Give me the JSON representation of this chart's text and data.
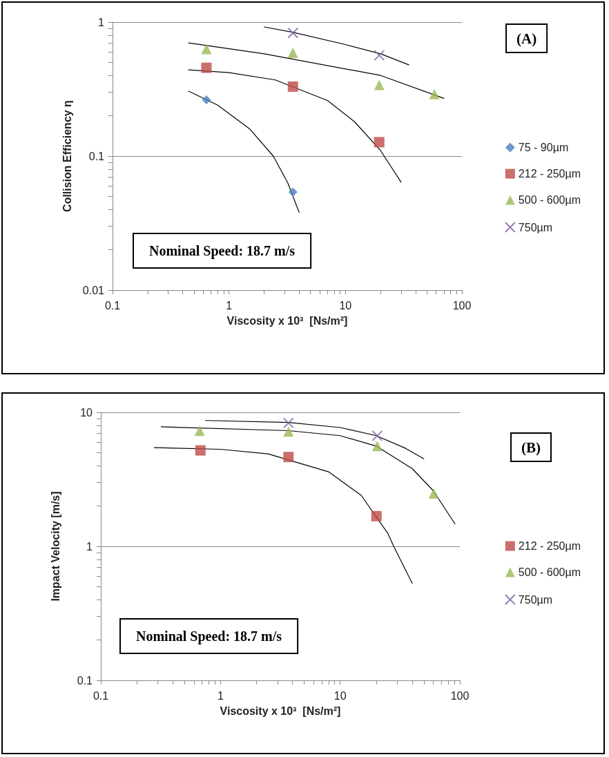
{
  "chart_data": [
    {
      "type": "scatter",
      "ylabel": "Collision Efficiency η",
      "xlabel": "Viscosity x 10³  [Ns/m²]",
      "log": "xy",
      "grid": "y",
      "legend": "right",
      "annotations": [
        "Nominal Speed: 18.7 m/s",
        "(A)"
      ],
      "xlim": [
        0.1,
        100
      ],
      "ylim": [
        0.01,
        1
      ],
      "xticks": [
        0.1,
        {
          "value": 0.2,
          "label": null
        },
        {
          "value": 0.3,
          "label": null
        },
        {
          "value": 0.4,
          "label": null
        },
        {
          "value": 0.5,
          "label": null
        },
        {
          "value": 0.6,
          "label": null
        },
        {
          "value": 0.7,
          "label": null
        },
        {
          "value": 0.8,
          "label": null
        },
        {
          "value": 0.9,
          "label": null
        },
        1,
        {
          "value": 2,
          "label": null
        },
        {
          "value": 3,
          "label": null
        },
        {
          "value": 4,
          "label": null
        },
        {
          "value": 5,
          "label": null
        },
        {
          "value": 6,
          "label": null
        },
        {
          "value": 7,
          "label": null
        },
        {
          "value": 8,
          "label": null
        },
        {
          "value": 9,
          "label": null
        },
        10,
        {
          "value": 20,
          "label": null
        },
        {
          "value": 30,
          "label": null
        },
        {
          "value": 40,
          "label": null
        },
        {
          "value": 50,
          "label": null
        },
        {
          "value": 60,
          "label": null
        },
        {
          "value": 70,
          "label": null
        },
        {
          "value": 80,
          "label": null
        },
        {
          "value": 90,
          "label": null
        },
        100
      ],
      "yticks": [
        0.01,
        {
          "value": 0.02,
          "label": null
        },
        {
          "value": 0.03,
          "label": null
        },
        {
          "value": 0.04,
          "label": null
        },
        {
          "value": 0.05,
          "label": null
        },
        {
          "value": 0.06,
          "label": null
        },
        {
          "value": 0.07,
          "label": null
        },
        {
          "value": 0.08,
          "label": null
        },
        {
          "value": 0.09,
          "label": null
        },
        0.1,
        {
          "value": 0.2,
          "label": null
        },
        {
          "value": 0.3,
          "label": null
        },
        {
          "value": 0.4,
          "label": null
        },
        {
          "value": 0.5,
          "label": null
        },
        {
          "value": 0.6,
          "label": null
        },
        {
          "value": 0.7,
          "label": null
        },
        {
          "value": 0.8,
          "label": null
        },
        {
          "value": 0.9,
          "label": null
        },
        1
      ],
      "series": [
        {
          "type": "scatter",
          "name": "75 - 90µm",
          "color": "#4a7ebb",
          "marker": "diamond",
          "x": [
            0.64,
            3.54
          ],
          "values": [
            0.263,
            0.054
          ]
        },
        {
          "type": "scatter",
          "name": "212 - 250µm",
          "color": "#be4b48",
          "marker": "square",
          "x": [
            0.64,
            3.54,
            19.5
          ],
          "values": [
            0.456,
            0.33,
            0.127
          ]
        },
        {
          "type": "scatter",
          "name": "500 - 600µm",
          "color": "#98b954",
          "marker": "triangle",
          "x": [
            0.64,
            3.54,
            19.5,
            58
          ],
          "values": [
            0.63,
            0.59,
            0.34,
            0.29
          ]
        },
        {
          "type": "scatter",
          "name": "750µm",
          "color": "#7d60a0",
          "marker": "cross",
          "x": [
            3.54,
            19.5
          ],
          "values": [
            0.83,
            0.565
          ]
        },
        {
          "type": "line",
          "color": "#000000",
          "marker": "none",
          "line_style": "solid",
          "x": [
            0.45,
            0.8,
            1.5,
            2.4,
            3.2,
            4
          ],
          "values": [
            0.305,
            0.24,
            0.16,
            0.1,
            0.063,
            0.038
          ]
        },
        {
          "type": "line",
          "color": "#000000",
          "marker": "none",
          "line_style": "solid",
          "x": [
            0.45,
            1,
            2.5,
            7,
            12,
            20,
            30
          ],
          "values": [
            0.44,
            0.42,
            0.37,
            0.26,
            0.18,
            0.11,
            0.064
          ]
        },
        {
          "type": "line",
          "color": "#000000",
          "marker": "none",
          "line_style": "solid",
          "x": [
            0.45,
            2,
            20,
            70
          ],
          "values": [
            0.7,
            0.58,
            0.4,
            0.27
          ]
        },
        {
          "type": "line",
          "color": "#000000",
          "marker": "none",
          "line_style": "solid",
          "x": [
            2,
            3.5,
            10,
            20,
            35
          ],
          "values": [
            0.92,
            0.84,
            0.68,
            0.58,
            0.48
          ]
        }
      ]
    },
    {
      "type": "scatter",
      "ylabel": "Impact Velocity [m/s]",
      "xlabel": "Viscosity x 10³  [Ns/m²]",
      "log": "xy",
      "grid": "y",
      "legend": "right",
      "annotations": [
        "Nominal Speed: 18.7 m/s",
        "(B)"
      ],
      "xlim": [
        0.1,
        100
      ],
      "ylim": [
        0.1,
        10
      ],
      "xticks": [
        0.1,
        {
          "value": 0.2,
          "label": null
        },
        {
          "value": 0.3,
          "label": null
        },
        {
          "value": 0.4,
          "label": null
        },
        {
          "value": 0.5,
          "label": null
        },
        {
          "value": 0.6,
          "label": null
        },
        {
          "value": 0.7,
          "label": null
        },
        {
          "value": 0.8,
          "label": null
        },
        {
          "value": 0.9,
          "label": null
        },
        1,
        {
          "value": 2,
          "label": null
        },
        {
          "value": 3,
          "label": null
        },
        {
          "value": 4,
          "label": null
        },
        {
          "value": 5,
          "label": null
        },
        {
          "value": 6,
          "label": null
        },
        {
          "value": 7,
          "label": null
        },
        {
          "value": 8,
          "label": null
        },
        {
          "value": 9,
          "label": null
        },
        10,
        {
          "value": 20,
          "label": null
        },
        {
          "value": 30,
          "label": null
        },
        {
          "value": 40,
          "label": null
        },
        {
          "value": 50,
          "label": null
        },
        {
          "value": 60,
          "label": null
        },
        {
          "value": 70,
          "label": null
        },
        {
          "value": 80,
          "label": null
        },
        {
          "value": 90,
          "label": null
        },
        100
      ],
      "yticks": [
        0.1,
        {
          "value": 0.2,
          "label": null
        },
        {
          "value": 0.3,
          "label": null
        },
        {
          "value": 0.4,
          "label": null
        },
        {
          "value": 0.5,
          "label": null
        },
        {
          "value": 0.6,
          "label": null
        },
        {
          "value": 0.7,
          "label": null
        },
        {
          "value": 0.8,
          "label": null
        },
        {
          "value": 0.9,
          "label": null
        },
        1,
        {
          "value": 2,
          "label": null
        },
        {
          "value": 3,
          "label": null
        },
        {
          "value": 4,
          "label": null
        },
        {
          "value": 5,
          "label": null
        },
        {
          "value": 6,
          "label": null
        },
        {
          "value": 7,
          "label": null
        },
        {
          "value": 8,
          "label": null
        },
        {
          "value": 9,
          "label": null
        },
        10
      ],
      "series": [
        {
          "type": "scatter",
          "name": "212 - 250µm",
          "color": "#be4b48",
          "marker": "square",
          "x": [
            0.68,
            3.7,
            20.1
          ],
          "values": [
            5.2,
            4.64,
            1.68
          ]
        },
        {
          "type": "scatter",
          "name": "500 - 600µm",
          "color": "#98b954",
          "marker": "triangle",
          "x": [
            0.67,
            3.7,
            20.4,
            60.5
          ],
          "values": [
            7.27,
            7.2,
            5.6,
            2.48
          ]
        },
        {
          "type": "scatter",
          "name": "750µm",
          "color": "#7d60a0",
          "marker": "cross",
          "x": [
            3.7,
            20.4
          ],
          "values": [
            8.33,
            6.69
          ]
        },
        {
          "type": "line",
          "color": "#000000",
          "marker": "none",
          "line_style": "solid",
          "x": [
            0.28,
            1,
            2.5,
            8,
            15,
            25,
            28,
            40
          ],
          "values": [
            5.45,
            5.3,
            4.9,
            3.6,
            2.4,
            1.25,
            1.0,
            0.53
          ]
        },
        {
          "type": "line",
          "color": "#000000",
          "marker": "none",
          "line_style": "solid",
          "x": [
            0.32,
            3.7,
            10,
            20,
            40,
            60,
            91
          ],
          "values": [
            7.8,
            7.3,
            6.7,
            5.6,
            3.8,
            2.6,
            1.47
          ]
        },
        {
          "type": "line",
          "color": "#000000",
          "marker": "none",
          "line_style": "solid",
          "x": [
            0.75,
            3.7,
            10,
            20,
            35,
            50
          ],
          "values": [
            8.7,
            8.4,
            7.7,
            6.7,
            5.4,
            4.5
          ]
        }
      ]
    }
  ]
}
